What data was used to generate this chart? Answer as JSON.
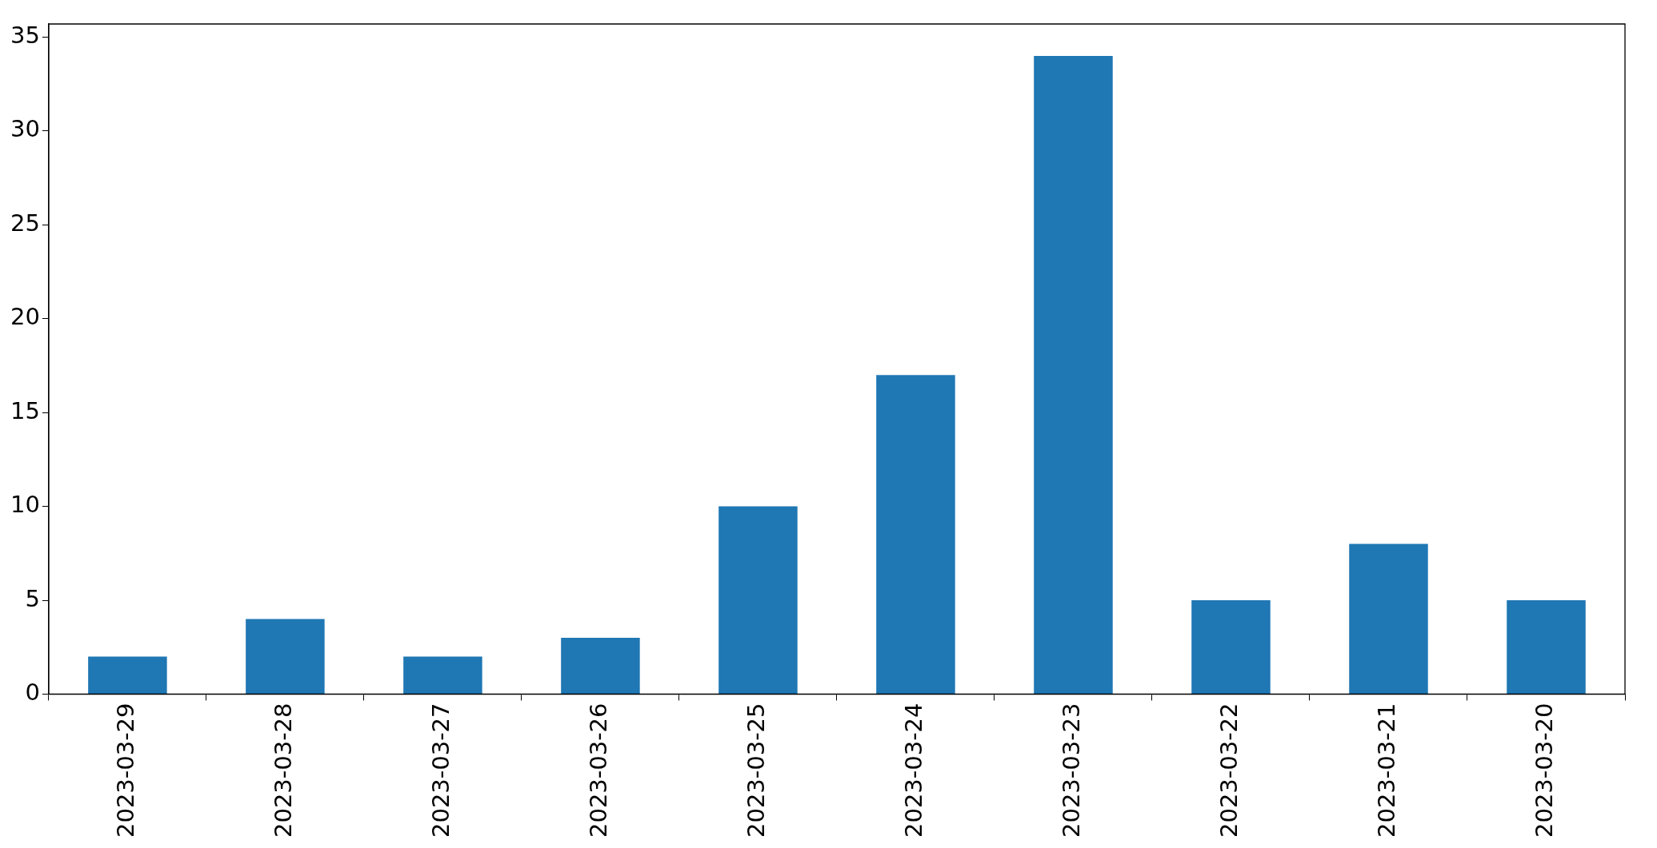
{
  "chart_data": {
    "type": "bar",
    "categories": [
      "2023-03-29",
      "2023-03-28",
      "2023-03-27",
      "2023-03-26",
      "2023-03-25",
      "2023-03-24",
      "2023-03-23",
      "2023-03-22",
      "2023-03-21",
      "2023-03-20"
    ],
    "values": [
      2,
      4,
      2,
      3,
      10,
      17,
      34,
      5,
      8,
      5
    ],
    "color": "#1f77b4",
    "ylim": [
      0,
      35.7
    ],
    "yticks": [
      0,
      5,
      10,
      15,
      20,
      25,
      30,
      35
    ],
    "grid": false,
    "legend": false
  }
}
